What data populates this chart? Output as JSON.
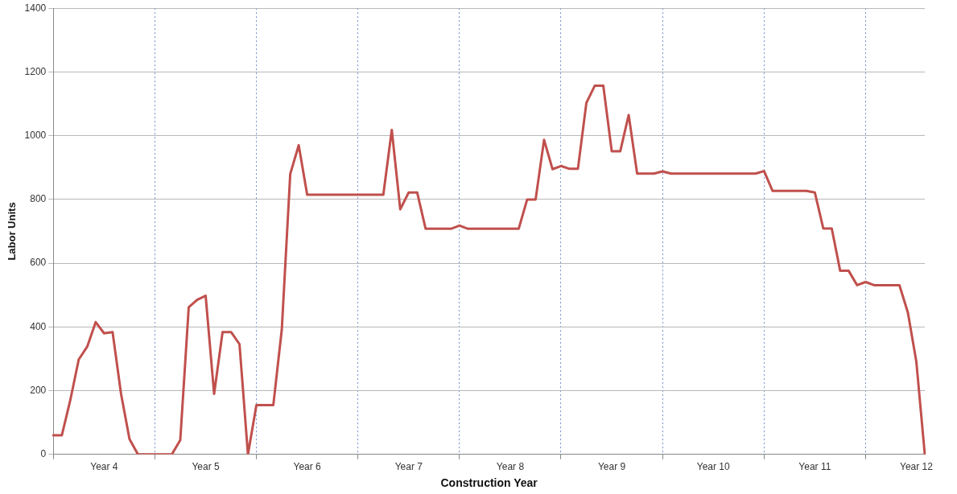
{
  "chart_data": {
    "type": "line",
    "xlabel": "Construction Year",
    "ylabel": "Labor Units",
    "categories": [
      null,
      null,
      null,
      null,
      null,
      null,
      "Year 4",
      null,
      null,
      null,
      null,
      null,
      null,
      null,
      null,
      null,
      null,
      null,
      "Year 5",
      null,
      null,
      null,
      null,
      null,
      null,
      null,
      null,
      null,
      null,
      null,
      "Year 6",
      null,
      null,
      null,
      null,
      null,
      null,
      null,
      null,
      null,
      null,
      null,
      "Year 7",
      null,
      null,
      null,
      null,
      null,
      null,
      null,
      null,
      null,
      null,
      null,
      "Year 8",
      null,
      null,
      null,
      null,
      null,
      null,
      null,
      null,
      null,
      null,
      null,
      "Year 9",
      null,
      null,
      null,
      null,
      null,
      null,
      null,
      null,
      null,
      null,
      null,
      "Year 10",
      null,
      null,
      null,
      null,
      null,
      null,
      null,
      null,
      null,
      null,
      null,
      "Year 11",
      null,
      null,
      null,
      null,
      null,
      null,
      null,
      null,
      null,
      null,
      null,
      "Year 12",
      null
    ],
    "series": [
      {
        "color": "#c0504d",
        "values": [
          60,
          60,
          170,
          298,
          338,
          415,
          380,
          384,
          190,
          48,
          0,
          0,
          0,
          0,
          0,
          45,
          462,
          485,
          498,
          190,
          384,
          384,
          346,
          0,
          155,
          155,
          155,
          392,
          880,
          970,
          815,
          815,
          815,
          815,
          815,
          815,
          815,
          815,
          815,
          815,
          1018,
          769,
          822,
          822,
          708,
          708,
          708,
          708,
          718,
          708,
          708,
          708,
          708,
          708,
          708,
          708,
          800,
          800,
          987,
          895,
          905,
          896,
          896,
          1103,
          1157,
          1157,
          951,
          951,
          1065,
          881,
          881,
          881,
          888,
          881,
          881,
          881,
          881,
          881,
          881,
          881,
          881,
          881,
          881,
          881,
          889,
          827,
          827,
          827,
          827,
          827,
          822,
          709,
          709,
          576,
          576,
          531,
          541,
          531,
          531,
          531,
          531,
          445,
          291,
          0
        ]
      }
    ],
    "ylim": [
      0,
      1400
    ],
    "yticks": [
      0,
      200,
      400,
      600,
      800,
      1000,
      1200,
      1400
    ],
    "grid": true,
    "legend": false,
    "marker": "none",
    "line_style": "solid"
  }
}
